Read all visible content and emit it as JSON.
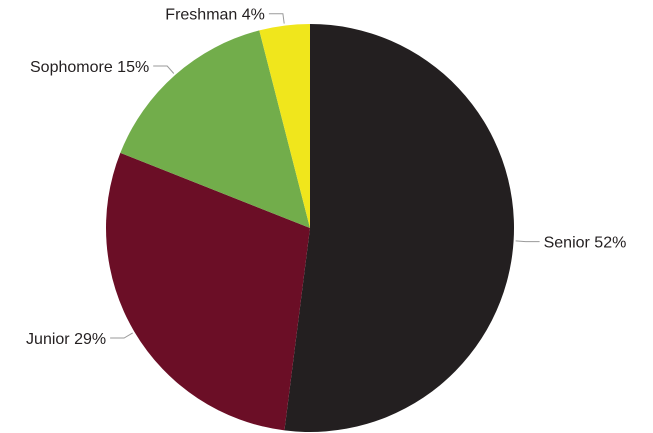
{
  "chart_data": {
    "type": "pie",
    "start_angle_deg": 0,
    "direction": "clockwise",
    "slices": [
      {
        "label": "Senior",
        "value": 52,
        "value_label": "52%",
        "color": "#231f20"
      },
      {
        "label": "Junior",
        "value": 29,
        "value_label": "29%",
        "color": "#6b0e26"
      },
      {
        "label": "Sophomore",
        "value": 15,
        "value_label": "15%",
        "color": "#72ad4b"
      },
      {
        "label": "Freshman",
        "value": 4,
        "value_label": "4%",
        "color": "#f0e61c"
      }
    ],
    "legend": "none",
    "labels": "outside-with-leader-lines"
  }
}
